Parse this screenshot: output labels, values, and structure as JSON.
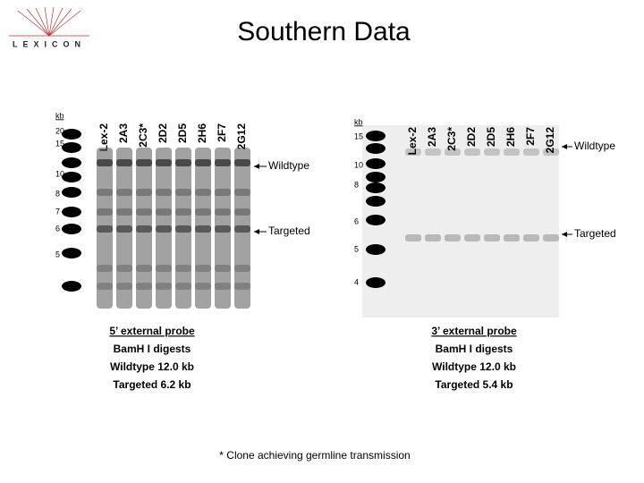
{
  "logo": "LEXICON",
  "title": "Southern Data",
  "panels": [
    {
      "lanes": [
        "Lex-2",
        "2A3",
        "2C3*",
        "2D2",
        "2D5",
        "2H6",
        "2F7",
        "2G12"
      ],
      "kb_unit": "kb",
      "kb_markers": [
        "20",
        "15",
        "10",
        "8",
        "7",
        "6",
        "5"
      ],
      "arrows": [
        "Wildtype",
        "Targeted"
      ],
      "caption": [
        "5’ external probe",
        "BamH I digests",
        "Wildtype 12.0 kb",
        "Targeted 6.2 kb"
      ]
    },
    {
      "lanes": [
        "Lex-2",
        "2A3",
        "2C3*",
        "2D2",
        "2D5",
        "2H6",
        "2F7",
        "2G12"
      ],
      "kb_unit": "kb",
      "kb_markers": [
        "15",
        "10",
        "8",
        "6",
        "5",
        "4"
      ],
      "arrows": [
        "Wildtype",
        "Targeted"
      ],
      "caption": [
        "3’ external probe",
        "BamH I digests",
        "Wildtype 12.0 kb",
        "Targeted 5.4 kb"
      ]
    }
  ],
  "footnote": "* Clone achieving germline transmission"
}
